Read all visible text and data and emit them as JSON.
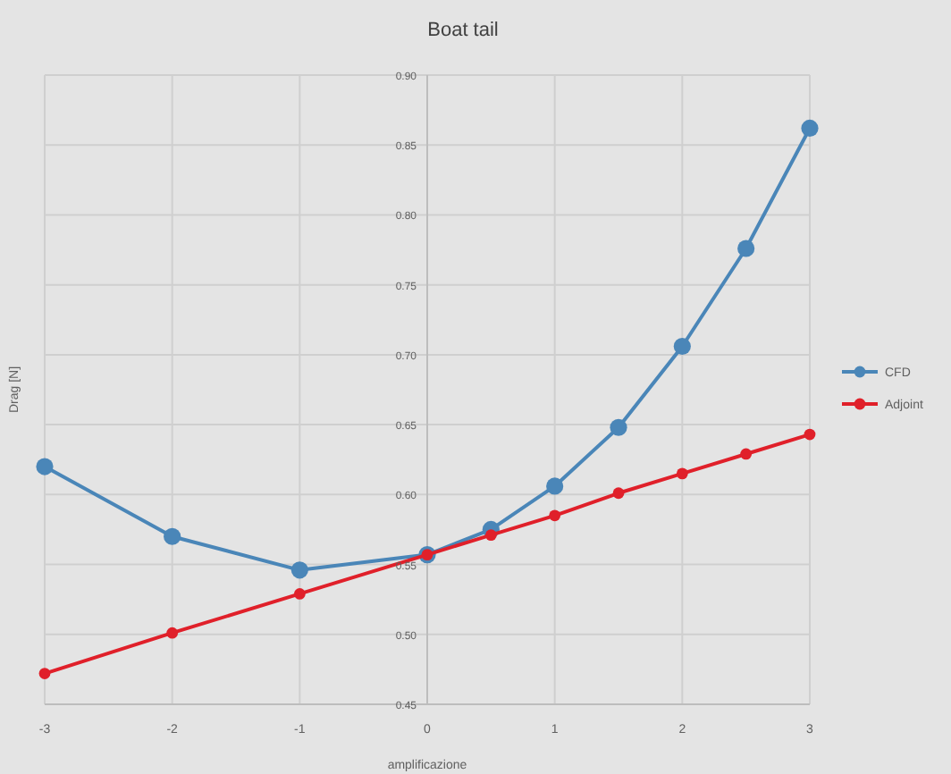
{
  "chart_data": {
    "type": "line",
    "title": "Boat tail",
    "xlabel": "amplificazione",
    "ylabel": "Drag [N]",
    "x": [
      -3,
      -2,
      -1,
      0,
      0.5,
      1,
      1.5,
      2,
      2.5,
      3
    ],
    "series": [
      {
        "name": "CFD",
        "color": "#4a86b8",
        "values": [
          0.62,
          0.57,
          0.546,
          0.557,
          0.575,
          0.606,
          0.648,
          0.706,
          0.776,
          0.862
        ]
      },
      {
        "name": "Adjoint",
        "color": "#e0202a",
        "x": [
          -3,
          -2,
          -1,
          0,
          0.5,
          1,
          1.5,
          2,
          2.5,
          3
        ],
        "values": [
          0.472,
          0.501,
          0.529,
          0.557,
          0.571,
          0.585,
          0.601,
          0.615,
          0.629,
          0.643
        ]
      }
    ],
    "xlim": [
      -3,
      3
    ],
    "xticks": [
      -3,
      -2,
      -1,
      0,
      1,
      2,
      3
    ],
    "ylim": [
      0.45,
      0.9
    ],
    "yticks": [
      {
        "value": 0.45,
        "label": "0.45"
      },
      {
        "value": 0.5,
        "label": "0.50"
      },
      {
        "value": 0.55,
        "label": "0.55"
      },
      {
        "value": 0.6,
        "label": "0.60"
      },
      {
        "value": 0.65,
        "label": "0.65"
      },
      {
        "value": 0.7,
        "label": "0.70"
      },
      {
        "value": 0.75,
        "label": "0.75"
      },
      {
        "value": 0.8,
        "label": "0.80"
      },
      {
        "value": 0.85,
        "label": "0.85"
      },
      {
        "value": 0.9,
        "label": "0.90"
      }
    ],
    "grid": true,
    "legend": "right",
    "marker": "circle",
    "line_style": "solid"
  }
}
